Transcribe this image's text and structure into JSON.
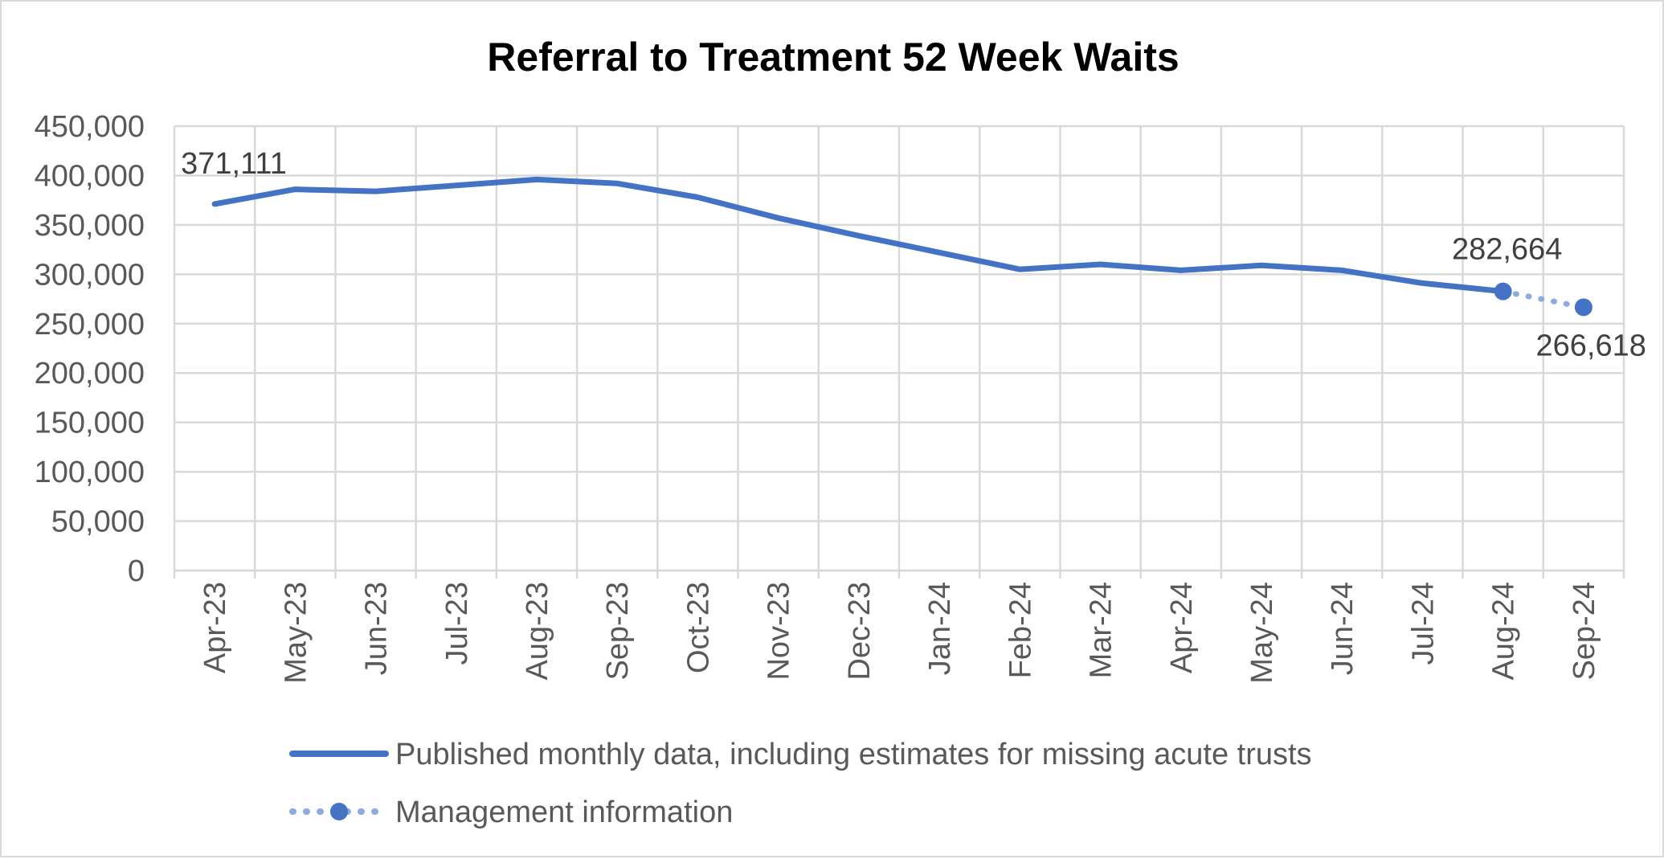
{
  "chart_data": {
    "type": "line",
    "title": "Referral to Treatment 52 Week Waits",
    "xlabel": "",
    "ylabel": "",
    "ylim": [
      0,
      450000
    ],
    "y_ticks": [
      "0",
      "50,000",
      "100,000",
      "150,000",
      "200,000",
      "250,000",
      "300,000",
      "350,000",
      "400,000",
      "450,000"
    ],
    "y_tick_values": [
      0,
      50000,
      100000,
      150000,
      200000,
      250000,
      300000,
      350000,
      400000,
      450000
    ],
    "categories": [
      "Apr-23",
      "May-23",
      "Jun-23",
      "Jul-23",
      "Aug-23",
      "Sep-23",
      "Oct-23",
      "Nov-23",
      "Dec-23",
      "Jan-24",
      "Feb-24",
      "Mar-24",
      "Apr-24",
      "May-24",
      "Jun-24",
      "Jul-24",
      "Aug-24",
      "Sep-24"
    ],
    "grid": true,
    "legend_position": "bottom",
    "series": [
      {
        "name": "Published monthly data, including estimates for missing acute trusts",
        "style": "solid",
        "color": "#4472c4",
        "values": [
          371111,
          386000,
          384000,
          390000,
          396000,
          392000,
          378000,
          357000,
          339000,
          322000,
          305000,
          310000,
          304000,
          309000,
          304000,
          291000,
          282664,
          null
        ]
      },
      {
        "name": "Management information",
        "style": "dotted-with-markers",
        "color": "#4472c4",
        "line_color": "#8faadc",
        "values": [
          null,
          null,
          null,
          null,
          null,
          null,
          null,
          null,
          null,
          null,
          null,
          null,
          null,
          null,
          null,
          null,
          282664,
          266618
        ]
      }
    ],
    "data_labels": [
      {
        "text": "371,111",
        "category": "Apr-23",
        "value": 371111
      },
      {
        "text": "282,664",
        "category": "Aug-24",
        "value": 282664
      },
      {
        "text": "266,618",
        "category": "Sep-24",
        "value": 266618
      }
    ]
  }
}
